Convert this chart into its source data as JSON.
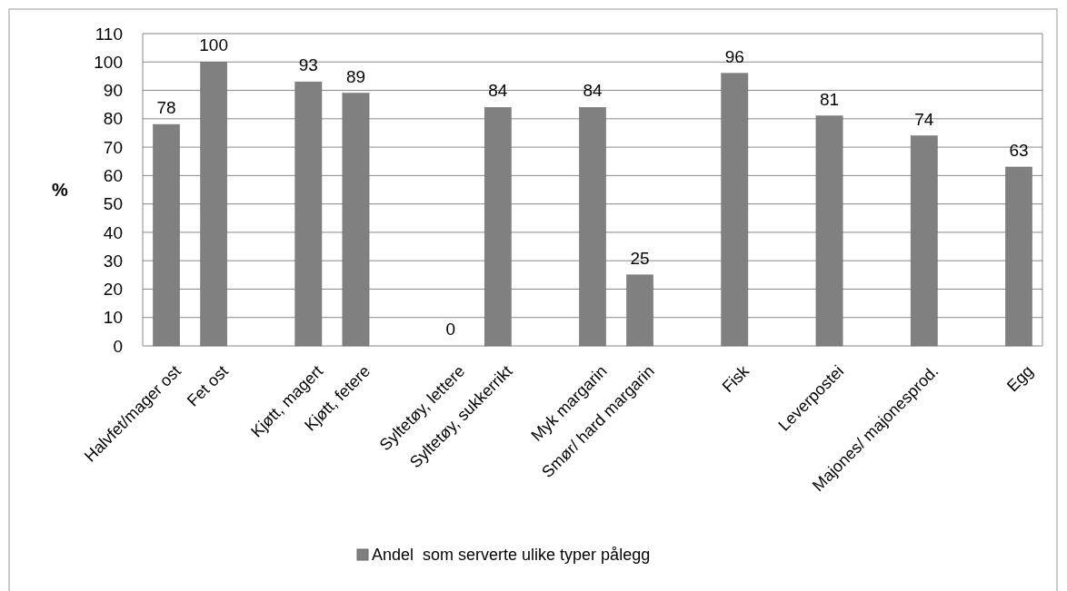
{
  "chart_data": {
    "type": "bar",
    "ylabel": "%",
    "categories": [
      "Halvfet/mager ost",
      "Fet ost",
      null,
      "Kjøtt, magert",
      "Kjøtt, fetere",
      null,
      "Syltetøy, lettere",
      "Syltetøy, sukkerrikt",
      null,
      "Myk margarin",
      "Smør/ hard margarin",
      null,
      "Fisk",
      null,
      "Leverpostei",
      null,
      "Majones/ majonesprod.",
      null,
      "Egg"
    ],
    "series": [
      {
        "name": "Andel  som serverte ulike typer pålegg",
        "color": "#808080",
        "values": [
          78,
          100,
          null,
          93,
          89,
          null,
          0,
          84,
          null,
          84,
          25,
          null,
          96,
          null,
          81,
          null,
          74,
          null,
          63
        ]
      }
    ],
    "ylim": [
      0,
      110
    ],
    "yticks": [
      0,
      10,
      20,
      30,
      40,
      50,
      60,
      70,
      80,
      90,
      100,
      110
    ],
    "grid": "y",
    "legend": "bottom",
    "data_labels": true
  }
}
